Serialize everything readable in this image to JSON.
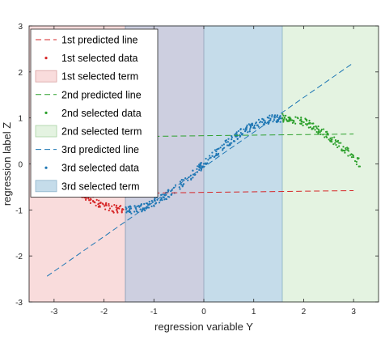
{
  "chart_data": {
    "type": "scatter",
    "title": "",
    "xlabel": "regression variable Y",
    "ylabel": "regression label Z",
    "xlim": [
      -3.5,
      3.5
    ],
    "ylim": [
      -3,
      3
    ],
    "xticks": [
      -3,
      -2,
      -1,
      0,
      1,
      2,
      3
    ],
    "yticks": [
      -3,
      -2,
      -1,
      0,
      1,
      2,
      3
    ],
    "grid": false,
    "legend_position": "top-left",
    "noise_amplitude": 0.09,
    "points_per_unit": 95,
    "terms": [
      {
        "name": "1st selected term",
        "x_range": [
          -3.5,
          -1.571
        ],
        "fill": "#f9dcdc",
        "edge": "#d9a0a0"
      },
      {
        "name": "2nd selected term",
        "x_range": [
          1.571,
          3.5
        ],
        "fill": "#e4f3e1",
        "edge": "#a9d3a2"
      },
      {
        "name": "3rd selected term",
        "x_range": [
          -1.571,
          1.571
        ],
        "fill": "#c5dcea",
        "edge": "#8fb3cc"
      }
    ],
    "overlap_fill": "#cdcfe0",
    "series": [
      {
        "order": "1st",
        "predicted_line": {
          "name": "1st predicted line",
          "x": [
            -3.14,
            3.0
          ],
          "y": [
            -0.66,
            -0.58
          ],
          "color": "#d62728"
        },
        "selected_data": {
          "name": "1st selected data",
          "x_range": [
            -3.14,
            -1.571
          ],
          "color": "#d62728"
        }
      },
      {
        "order": "2nd",
        "predicted_line": {
          "name": "2nd predicted line",
          "x": [
            -1.0,
            3.0
          ],
          "y": [
            0.6,
            0.65
          ],
          "color": "#2ca02c"
        },
        "selected_data": {
          "name": "2nd selected data",
          "x_range": [
            1.571,
            3.14
          ],
          "color": "#2ca02c"
        }
      },
      {
        "order": "3rd",
        "predicted_line": {
          "name": "3rd predicted line",
          "x": [
            -3.14,
            3.0
          ],
          "y": [
            -2.44,
            2.2
          ],
          "color": "#1f77b4"
        },
        "selected_data": {
          "name": "3rd selected data",
          "x_range": [
            -1.571,
            1.571
          ],
          "color": "#1f77b4"
        }
      }
    ]
  }
}
